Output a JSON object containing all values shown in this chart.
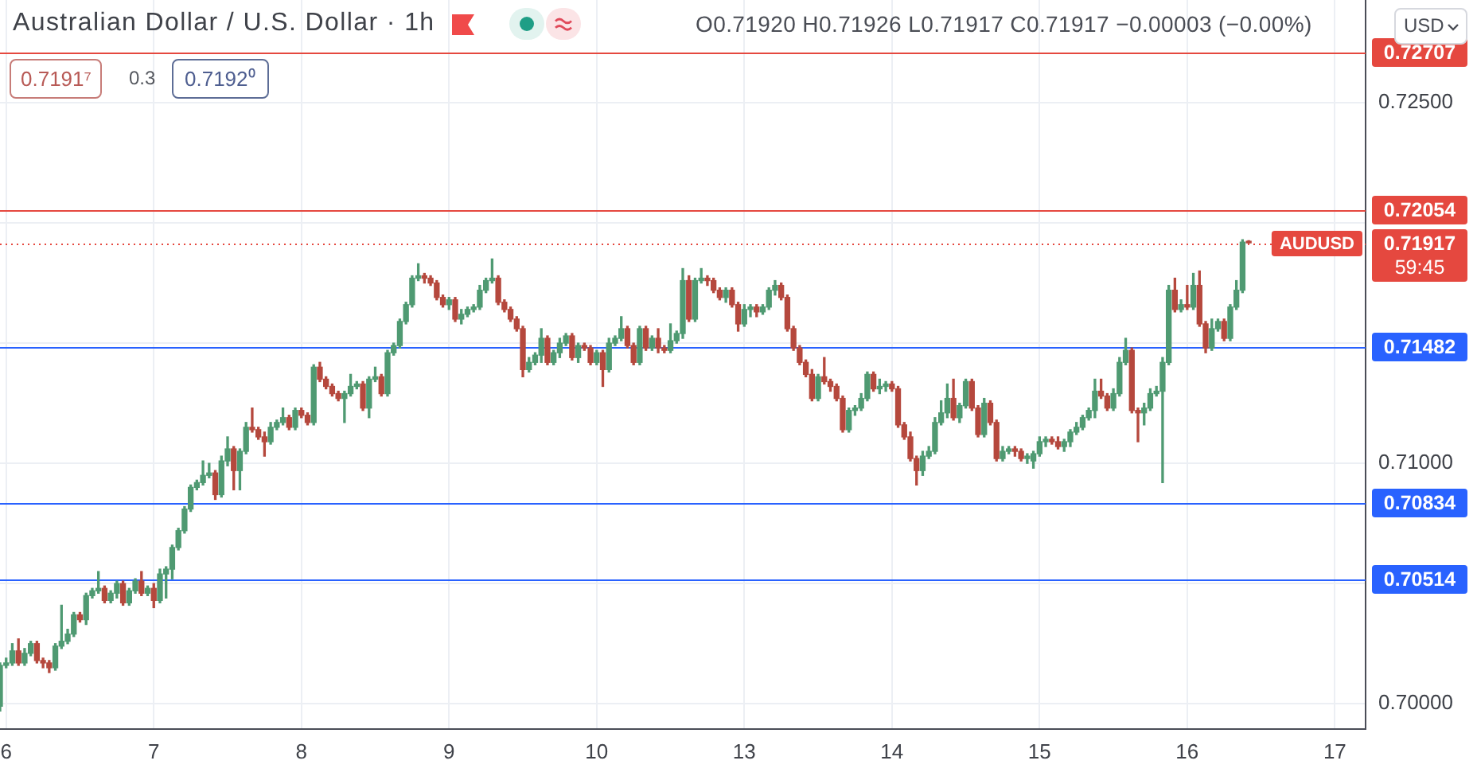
{
  "chart_data": {
    "type": "candlestick",
    "title": "Australian Dollar / U.S. Dollar · 1h",
    "subtitle": "O0.71920 H0.71926 L0.71917 C0.71917 −0.00003 (−0.00%)",
    "annotations": [
      "0.7191⁷",
      "0.3",
      "0.7192⁰",
      "USD",
      "AUDUSD",
      "59:45"
    ],
    "categories": [
      null,
      "6",
      null,
      null,
      null,
      null,
      null,
      null,
      null,
      null,
      null,
      null,
      null,
      null,
      null,
      null,
      null,
      null,
      null,
      null,
      null,
      null,
      null,
      null,
      null,
      "7",
      null,
      null,
      null,
      null,
      null,
      null,
      null,
      null,
      null,
      null,
      null,
      null,
      null,
      null,
      null,
      null,
      null,
      null,
      null,
      null,
      null,
      null,
      null,
      "8",
      null,
      null,
      null,
      null,
      null,
      null,
      null,
      null,
      null,
      null,
      null,
      null,
      null,
      null,
      null,
      null,
      null,
      null,
      null,
      null,
      null,
      null,
      null,
      "9",
      null,
      null,
      null,
      null,
      null,
      null,
      null,
      null,
      null,
      null,
      null,
      null,
      null,
      null,
      null,
      null,
      null,
      null,
      null,
      null,
      null,
      null,
      null,
      "10",
      null,
      null,
      null,
      null,
      null,
      null,
      null,
      null,
      null,
      null,
      null,
      null,
      null,
      null,
      null,
      null,
      null,
      null,
      null,
      null,
      null,
      null,
      null,
      "13",
      null,
      null,
      null,
      null,
      null,
      null,
      null,
      null,
      null,
      null,
      null,
      null,
      null,
      null,
      null,
      null,
      null,
      null,
      null,
      null,
      null,
      null,
      null,
      "14",
      null,
      null,
      null,
      null,
      null,
      null,
      null,
      null,
      null,
      null,
      null,
      null,
      null,
      null,
      null,
      null,
      null,
      null,
      null,
      null,
      null,
      null,
      null,
      "15",
      null,
      null,
      null,
      null,
      null,
      null,
      null,
      null,
      null,
      null,
      null,
      null,
      null,
      null,
      null,
      null,
      null,
      null,
      null,
      null,
      null,
      null,
      null,
      "16",
      null,
      null,
      null,
      null,
      null,
      null,
      null,
      null,
      null,
      null,
      null,
      null,
      null,
      null,
      null,
      null,
      null,
      null,
      null,
      null,
      null,
      null,
      null,
      "17",
      null,
      null,
      null,
      null,
      null
    ],
    "ohlc": [
      [
        0.6999,
        0.7017,
        0.6997,
        0.7016
      ],
      [
        0.7016,
        0.7019,
        0.7015,
        0.7017
      ],
      [
        0.7017,
        0.7025,
        0.7016,
        0.7022
      ],
      [
        0.7022,
        0.7027,
        0.7016,
        0.7017
      ],
      [
        0.7017,
        0.7023,
        0.7016,
        0.7021
      ],
      [
        0.7021,
        0.7026,
        0.702,
        0.7025
      ],
      [
        0.7025,
        0.7026,
        0.7017,
        0.7018
      ],
      [
        0.7018,
        0.7019,
        0.7015,
        0.7017
      ],
      [
        0.7017,
        0.7018,
        0.7013,
        0.7015
      ],
      [
        0.7015,
        0.7025,
        0.7014,
        0.7024
      ],
      [
        0.7024,
        0.7041,
        0.7023,
        0.7026
      ],
      [
        0.7026,
        0.7031,
        0.7025,
        0.7029
      ],
      [
        0.7029,
        0.7038,
        0.7028,
        0.7037
      ],
      [
        0.7037,
        0.7038,
        0.7034,
        0.7035
      ],
      [
        0.7035,
        0.7046,
        0.7033,
        0.7045
      ],
      [
        0.7045,
        0.7048,
        0.7044,
        0.7047
      ],
      [
        0.7047,
        0.7055,
        0.7046,
        0.7048
      ],
      [
        0.7048,
        0.7049,
        0.7042,
        0.7043
      ],
      [
        0.7043,
        0.7047,
        0.7042,
        0.7046
      ],
      [
        0.7046,
        0.7051,
        0.7044,
        0.705
      ],
      [
        0.705,
        0.7051,
        0.7041,
        0.7042
      ],
      [
        0.7042,
        0.7048,
        0.7041,
        0.7047
      ],
      [
        0.7047,
        0.7052,
        0.7046,
        0.7051
      ],
      [
        0.7051,
        0.7055,
        0.7045,
        0.7046
      ],
      [
        0.7046,
        0.7049,
        0.7045,
        0.7048
      ],
      [
        0.7048,
        0.705,
        0.704,
        0.7043
      ],
      [
        0.7043,
        0.7056,
        0.7042,
        0.7054
      ],
      [
        0.7054,
        0.7057,
        0.7044,
        0.7056
      ],
      [
        0.7056,
        0.7066,
        0.7052,
        0.7065
      ],
      [
        0.7065,
        0.7073,
        0.7064,
        0.7072
      ],
      [
        0.7072,
        0.7082,
        0.7071,
        0.7081
      ],
      [
        0.7081,
        0.7091,
        0.708,
        0.709
      ],
      [
        0.709,
        0.7093,
        0.7089,
        0.7092
      ],
      [
        0.7092,
        0.7101,
        0.7091,
        0.7095
      ],
      [
        0.7095,
        0.71,
        0.7094,
        0.7096
      ],
      [
        0.7096,
        0.7097,
        0.7085,
        0.7087
      ],
      [
        0.7087,
        0.7103,
        0.7086,
        0.7101
      ],
      [
        0.7101,
        0.7111,
        0.7099,
        0.7106
      ],
      [
        0.7106,
        0.7107,
        0.7089,
        0.7097
      ],
      [
        0.7097,
        0.7106,
        0.7089,
        0.7105
      ],
      [
        0.7105,
        0.7117,
        0.7104,
        0.7115
      ],
      [
        0.7115,
        0.7123,
        0.7113,
        0.7114
      ],
      [
        0.7114,
        0.7115,
        0.711,
        0.7111
      ],
      [
        0.7111,
        0.7113,
        0.7103,
        0.7109
      ],
      [
        0.7109,
        0.7117,
        0.7108,
        0.7115
      ],
      [
        0.7115,
        0.7118,
        0.7114,
        0.7117
      ],
      [
        0.7117,
        0.7123,
        0.7116,
        0.7119
      ],
      [
        0.7119,
        0.712,
        0.7114,
        0.7115
      ],
      [
        0.7115,
        0.7123,
        0.7114,
        0.7122
      ],
      [
        0.7122,
        0.7123,
        0.7119,
        0.712
      ],
      [
        0.712,
        0.7121,
        0.7116,
        0.7117
      ],
      [
        0.7117,
        0.7141,
        0.7116,
        0.714
      ],
      [
        0.714,
        0.7142,
        0.7134,
        0.7135
      ],
      [
        0.7135,
        0.7136,
        0.7131,
        0.7132
      ],
      [
        0.7132,
        0.7133,
        0.7128,
        0.7129
      ],
      [
        0.7129,
        0.713,
        0.7126,
        0.7127
      ],
      [
        0.7127,
        0.713,
        0.7117,
        0.7129
      ],
      [
        0.7129,
        0.7137,
        0.7128,
        0.7132
      ],
      [
        0.7132,
        0.7134,
        0.7131,
        0.7133
      ],
      [
        0.7133,
        0.7134,
        0.7122,
        0.7123
      ],
      [
        0.7123,
        0.7136,
        0.7119,
        0.7135
      ],
      [
        0.7135,
        0.714,
        0.7134,
        0.7136
      ],
      [
        0.7136,
        0.7137,
        0.7128,
        0.7129
      ],
      [
        0.7129,
        0.7147,
        0.7128,
        0.7146
      ],
      [
        0.7146,
        0.715,
        0.7145,
        0.7149
      ],
      [
        0.7149,
        0.716,
        0.7148,
        0.7159
      ],
      [
        0.7159,
        0.7167,
        0.7158,
        0.7166
      ],
      [
        0.7166,
        0.7178,
        0.7165,
        0.7177
      ],
      [
        0.7177,
        0.7183,
        0.7176,
        0.7178
      ],
      [
        0.7178,
        0.7179,
        0.7175,
        0.7177
      ],
      [
        0.7177,
        0.7178,
        0.7174,
        0.7175
      ],
      [
        0.7175,
        0.7176,
        0.7168,
        0.7169
      ],
      [
        0.7169,
        0.717,
        0.7165,
        0.7166
      ],
      [
        0.7166,
        0.7169,
        0.7164,
        0.7168
      ],
      [
        0.7168,
        0.7169,
        0.7159,
        0.716
      ],
      [
        0.716,
        0.7164,
        0.7158,
        0.7162
      ],
      [
        0.7162,
        0.7165,
        0.7161,
        0.7164
      ],
      [
        0.7164,
        0.7166,
        0.7163,
        0.7165
      ],
      [
        0.7165,
        0.7174,
        0.7164,
        0.7172
      ],
      [
        0.7172,
        0.7177,
        0.7171,
        0.7176
      ],
      [
        0.7176,
        0.7185,
        0.7175,
        0.7177
      ],
      [
        0.7177,
        0.7178,
        0.7166,
        0.7167
      ],
      [
        0.7167,
        0.7168,
        0.7163,
        0.7164
      ],
      [
        0.7164,
        0.7165,
        0.7159,
        0.716
      ],
      [
        0.716,
        0.7161,
        0.7155,
        0.7156
      ],
      [
        0.7156,
        0.7157,
        0.7136,
        0.7139
      ],
      [
        0.7139,
        0.7144,
        0.7138,
        0.7142
      ],
      [
        0.7142,
        0.7146,
        0.7141,
        0.7145
      ],
      [
        0.7145,
        0.7156,
        0.7142,
        0.7152
      ],
      [
        0.7152,
        0.7153,
        0.7141,
        0.7142
      ],
      [
        0.7142,
        0.7147,
        0.7141,
        0.7146
      ],
      [
        0.7146,
        0.7152,
        0.7144,
        0.715
      ],
      [
        0.715,
        0.7154,
        0.7149,
        0.7153
      ],
      [
        0.7153,
        0.7154,
        0.7143,
        0.7144
      ],
      [
        0.7144,
        0.715,
        0.7142,
        0.7149
      ],
      [
        0.7149,
        0.715,
        0.7147,
        0.7148
      ],
      [
        0.7148,
        0.7149,
        0.7141,
        0.7142
      ],
      [
        0.7142,
        0.7147,
        0.7141,
        0.7146
      ],
      [
        0.7146,
        0.7147,
        0.7132,
        0.7139
      ],
      [
        0.7139,
        0.7152,
        0.7138,
        0.715
      ],
      [
        0.715,
        0.7153,
        0.7149,
        0.7152
      ],
      [
        0.7152,
        0.7161,
        0.7151,
        0.7156
      ],
      [
        0.7156,
        0.7157,
        0.7148,
        0.7149
      ],
      [
        0.7149,
        0.715,
        0.7141,
        0.7142
      ],
      [
        0.7142,
        0.7157,
        0.7141,
        0.7156
      ],
      [
        0.7156,
        0.7157,
        0.7147,
        0.7148
      ],
      [
        0.7148,
        0.7153,
        0.7147,
        0.7152
      ],
      [
        0.7152,
        0.7156,
        0.7146,
        0.7148
      ],
      [
        0.7148,
        0.7149,
        0.7146,
        0.7147
      ],
      [
        0.7147,
        0.7158,
        0.7146,
        0.7151
      ],
      [
        0.7151,
        0.7155,
        0.715,
        0.7154
      ],
      [
        0.7154,
        0.7181,
        0.7152,
        0.7176
      ],
      [
        0.7176,
        0.7178,
        0.7159,
        0.716
      ],
      [
        0.716,
        0.7177,
        0.7159,
        0.7176
      ],
      [
        0.7176,
        0.7181,
        0.7175,
        0.7177
      ],
      [
        0.7177,
        0.7178,
        0.7174,
        0.7176
      ],
      [
        0.7176,
        0.7177,
        0.7171,
        0.7172
      ],
      [
        0.7172,
        0.7173,
        0.7168,
        0.7169
      ],
      [
        0.7169,
        0.7173,
        0.7167,
        0.7172
      ],
      [
        0.7172,
        0.7173,
        0.7165,
        0.7166
      ],
      [
        0.7166,
        0.7167,
        0.7155,
        0.7158
      ],
      [
        0.7158,
        0.7166,
        0.7157,
        0.7164
      ],
      [
        0.7164,
        0.7166,
        0.7161,
        0.7165
      ],
      [
        0.7165,
        0.7166,
        0.7161,
        0.7163
      ],
      [
        0.7163,
        0.7166,
        0.7162,
        0.7165
      ],
      [
        0.7165,
        0.7173,
        0.7164,
        0.7172
      ],
      [
        0.7172,
        0.7176,
        0.717,
        0.7174
      ],
      [
        0.7174,
        0.7175,
        0.7168,
        0.7169
      ],
      [
        0.7169,
        0.717,
        0.7155,
        0.7156
      ],
      [
        0.7156,
        0.7157,
        0.7147,
        0.7148
      ],
      [
        0.7148,
        0.7149,
        0.7141,
        0.7142
      ],
      [
        0.7142,
        0.7143,
        0.7136,
        0.7137
      ],
      [
        0.7137,
        0.7139,
        0.7126,
        0.7127
      ],
      [
        0.7127,
        0.7137,
        0.7126,
        0.7136
      ],
      [
        0.7136,
        0.7144,
        0.7133,
        0.7134
      ],
      [
        0.7134,
        0.7135,
        0.713,
        0.7132
      ],
      [
        0.7132,
        0.7133,
        0.7126,
        0.7127
      ],
      [
        0.7127,
        0.7128,
        0.7113,
        0.7114
      ],
      [
        0.7114,
        0.7123,
        0.7113,
        0.7122
      ],
      [
        0.7122,
        0.7124,
        0.712,
        0.7123
      ],
      [
        0.7123,
        0.7129,
        0.7122,
        0.7127
      ],
      [
        0.7127,
        0.7138,
        0.7126,
        0.7137
      ],
      [
        0.7137,
        0.7138,
        0.713,
        0.7131
      ],
      [
        0.7131,
        0.7135,
        0.7129,
        0.7132
      ],
      [
        0.7132,
        0.7134,
        0.713,
        0.7133
      ],
      [
        0.7133,
        0.7134,
        0.713,
        0.7131
      ],
      [
        0.7131,
        0.7132,
        0.7115,
        0.7116
      ],
      [
        0.7116,
        0.7117,
        0.711,
        0.7111
      ],
      [
        0.7111,
        0.7113,
        0.7101,
        0.7102
      ],
      [
        0.7102,
        0.7103,
        0.7091,
        0.7097
      ],
      [
        0.7097,
        0.7105,
        0.7095,
        0.7103
      ],
      [
        0.7103,
        0.7107,
        0.7102,
        0.7105
      ],
      [
        0.7105,
        0.7119,
        0.7104,
        0.7117
      ],
      [
        0.7117,
        0.7126,
        0.7116,
        0.7121
      ],
      [
        0.7121,
        0.7133,
        0.7119,
        0.7127
      ],
      [
        0.7127,
        0.7135,
        0.7118,
        0.7119
      ],
      [
        0.7119,
        0.7125,
        0.7117,
        0.7124
      ],
      [
        0.7124,
        0.7135,
        0.7123,
        0.7134
      ],
      [
        0.7134,
        0.7135,
        0.7122,
        0.7123
      ],
      [
        0.7123,
        0.7124,
        0.7111,
        0.7112
      ],
      [
        0.7112,
        0.7127,
        0.7111,
        0.7125
      ],
      [
        0.7125,
        0.7126,
        0.7116,
        0.7117
      ],
      [
        0.7117,
        0.7118,
        0.7101,
        0.7102
      ],
      [
        0.7102,
        0.7107,
        0.7101,
        0.7105
      ],
      [
        0.7105,
        0.7107,
        0.7104,
        0.7106
      ],
      [
        0.7106,
        0.7107,
        0.7103,
        0.7105
      ],
      [
        0.7105,
        0.7106,
        0.7101,
        0.7102
      ],
      [
        0.7102,
        0.7104,
        0.71,
        0.7103
      ],
      [
        0.7101,
        0.7105,
        0.7098,
        0.7104
      ],
      [
        0.7104,
        0.7111,
        0.7103,
        0.7109
      ],
      [
        0.7109,
        0.7111,
        0.7107,
        0.711
      ],
      [
        0.711,
        0.7111,
        0.7108,
        0.7109
      ],
      [
        0.7109,
        0.7111,
        0.7106,
        0.7107
      ],
      [
        0.7107,
        0.711,
        0.7105,
        0.7109
      ],
      [
        0.7109,
        0.7114,
        0.7107,
        0.7113
      ],
      [
        0.7113,
        0.7117,
        0.7112,
        0.7115
      ],
      [
        0.7115,
        0.712,
        0.7114,
        0.7119
      ],
      [
        0.7119,
        0.7123,
        0.7118,
        0.7122
      ],
      [
        0.7122,
        0.7135,
        0.7119,
        0.713
      ],
      [
        0.713,
        0.7135,
        0.7127,
        0.7128
      ],
      [
        0.7128,
        0.7129,
        0.7122,
        0.7123
      ],
      [
        0.7123,
        0.7131,
        0.7122,
        0.7129
      ],
      [
        0.7129,
        0.7144,
        0.7128,
        0.7142
      ],
      [
        0.7142,
        0.7152,
        0.7141,
        0.7147
      ],
      [
        0.7147,
        0.7148,
        0.7121,
        0.7122
      ],
      [
        0.7122,
        0.7123,
        0.7109,
        0.7121
      ],
      [
        0.7121,
        0.7125,
        0.7116,
        0.7123
      ],
      [
        0.7123,
        0.7131,
        0.7122,
        0.7129
      ],
      [
        0.7129,
        0.7132,
        0.7128,
        0.713
      ],
      [
        0.713,
        0.7144,
        0.7092,
        0.7142
      ],
      [
        0.7142,
        0.7174,
        0.7141,
        0.7172
      ],
      [
        0.7172,
        0.7177,
        0.7163,
        0.7164
      ],
      [
        0.7164,
        0.7168,
        0.7163,
        0.7166
      ],
      [
        0.7166,
        0.7174,
        0.7164,
        0.7165
      ],
      [
        0.7165,
        0.7179,
        0.7164,
        0.7174
      ],
      [
        0.7174,
        0.718,
        0.7157,
        0.7158
      ],
      [
        0.7158,
        0.7159,
        0.7146,
        0.7148
      ],
      [
        0.7148,
        0.716,
        0.7147,
        0.7156
      ],
      [
        0.7156,
        0.716,
        0.7155,
        0.7159
      ],
      [
        0.7159,
        0.716,
        0.7151,
        0.7152
      ],
      [
        0.7152,
        0.7166,
        0.7151,
        0.7165
      ],
      [
        0.7165,
        0.7176,
        0.7164,
        0.7172
      ],
      [
        0.7172,
        0.7193,
        0.7171,
        0.7192
      ],
      [
        0.7192,
        0.71926,
        0.71917,
        0.71917
      ],
      null,
      null,
      null,
      null,
      null,
      null,
      null,
      null,
      null,
      null,
      null,
      null,
      null,
      null,
      null,
      null,
      null,
      null,
      null
    ],
    "colors": [
      "#4f9a72",
      "#4f9a72",
      "#4f9a72",
      "#b5483d",
      "#4f9a72",
      "#4f9a72",
      "#b5483d",
      "#b5483d",
      "#b5483d",
      "#4f9a72",
      "#4f9a72",
      "#4f9a72",
      "#4f9a72",
      "#b5483d",
      "#4f9a72",
      "#4f9a72",
      "#4f9a72",
      "#b5483d",
      "#4f9a72",
      "#4f9a72",
      "#b5483d",
      "#4f9a72",
      "#4f9a72",
      "#b5483d",
      "#4f9a72",
      "#b5483d",
      "#4f9a72",
      "#4f9a72",
      "#4f9a72",
      "#4f9a72",
      "#4f9a72",
      "#4f9a72",
      "#4f9a72",
      "#4f9a72",
      "#4f9a72",
      "#b5483d",
      "#4f9a72",
      "#4f9a72",
      "#b5483d",
      "#4f9a72",
      "#4f9a72",
      "#b5483d",
      "#b5483d",
      "#b5483d",
      "#4f9a72",
      "#4f9a72",
      "#4f9a72",
      "#b5483d",
      "#4f9a72",
      "#b5483d",
      "#b5483d",
      "#4f9a72",
      "#b5483d",
      "#b5483d",
      "#b5483d",
      "#b5483d",
      "#4f9a72",
      "#4f9a72",
      "#4f9a72",
      "#b5483d",
      "#4f9a72",
      "#4f9a72",
      "#b5483d",
      "#4f9a72",
      "#4f9a72",
      "#4f9a72",
      "#4f9a72",
      "#4f9a72",
      "#4f9a72",
      "#b5483d",
      "#b5483d",
      "#b5483d",
      "#b5483d",
      "#4f9a72",
      "#b5483d",
      "#4f9a72",
      "#4f9a72",
      "#4f9a72",
      "#4f9a72",
      "#4f9a72",
      "#4f9a72",
      "#b5483d",
      "#b5483d",
      "#b5483d",
      "#b5483d",
      "#b5483d",
      "#4f9a72",
      "#4f9a72",
      "#4f9a72",
      "#b5483d",
      "#4f9a72",
      "#4f9a72",
      "#4f9a72",
      "#b5483d",
      "#4f9a72",
      "#b5483d",
      "#b5483d",
      "#4f9a72",
      "#b5483d",
      "#4f9a72",
      "#4f9a72",
      "#4f9a72",
      "#b5483d",
      "#b5483d",
      "#4f9a72",
      "#b5483d",
      "#4f9a72",
      "#b5483d",
      "#b5483d",
      "#4f9a72",
      "#4f9a72",
      "#4f9a72",
      "#b5483d",
      "#4f9a72",
      "#4f9a72",
      "#b5483d",
      "#b5483d",
      "#b5483d",
      "#4f9a72",
      "#b5483d",
      "#b5483d",
      "#4f9a72",
      "#4f9a72",
      "#b5483d",
      "#4f9a72",
      "#4f9a72",
      "#4f9a72",
      "#b5483d",
      "#b5483d",
      "#b5483d",
      "#b5483d",
      "#b5483d",
      "#b5483d",
      "#4f9a72",
      "#b5483d",
      "#b5483d",
      "#b5483d",
      "#b5483d",
      "#4f9a72",
      "#4f9a72",
      "#4f9a72",
      "#4f9a72",
      "#b5483d",
      "#4f9a72",
      "#4f9a72",
      "#b5483d",
      "#b5483d",
      "#b5483d",
      "#b5483d",
      "#b5483d",
      "#4f9a72",
      "#4f9a72",
      "#4f9a72",
      "#4f9a72",
      "#4f9a72",
      "#b5483d",
      "#4f9a72",
      "#4f9a72",
      "#b5483d",
      "#b5483d",
      "#4f9a72",
      "#b5483d",
      "#b5483d",
      "#4f9a72",
      "#4f9a72",
      "#b5483d",
      "#b5483d",
      "#4f9a72",
      "#4f9a72",
      "#4f9a72",
      "#4f9a72",
      "#b5483d",
      "#b5483d",
      "#4f9a72",
      "#4f9a72",
      "#4f9a72",
      "#4f9a72",
      "#4f9a72",
      "#4f9a72",
      "#b5483d",
      "#b5483d",
      "#4f9a72",
      "#4f9a72",
      "#4f9a72",
      "#b5483d",
      "#b5483d",
      "#4f9a72",
      "#4f9a72",
      "#4f9a72",
      "#4f9a72",
      "#4f9a72",
      "#b5483d",
      "#4f9a72",
      "#b5483d",
      "#4f9a72",
      "#b5483d",
      "#b5483d",
      "#4f9a72",
      "#4f9a72",
      "#b5483d",
      "#4f9a72",
      "#4f9a72",
      "#4f9a72",
      "#b5483d",
      null,
      null,
      null,
      null,
      null,
      null,
      null,
      null,
      null,
      null,
      null,
      null,
      null,
      null,
      null,
      null,
      null,
      null,
      null
    ],
    "ylim": [
      0.69895,
      0.72927
    ],
    "yticks": [
      {
        "value": 0.7,
        "label": "0.70000"
      },
      {
        "value": 0.705,
        "label": null
      },
      {
        "value": 0.71,
        "label": "0.71000"
      },
      {
        "value": 0.715,
        "label": null
      },
      {
        "value": 0.72,
        "label": null
      },
      {
        "value": 0.725,
        "label": "0.72500"
      }
    ],
    "grid": true,
    "ref_lines": [
      {
        "axis": "y",
        "value": 0.72707,
        "label": "0.72707",
        "color": "#e5483f"
      },
      {
        "axis": "y",
        "value": 0.72054,
        "label": "0.72054",
        "color": "#e5483f"
      },
      {
        "axis": "y",
        "value": 0.71917,
        "label": "0.71917",
        "color": "#e5483f",
        "line_style": "dotted"
      },
      {
        "axis": "y",
        "value": 0.71482,
        "label": "0.71482",
        "color": "#2962ff"
      },
      {
        "axis": "y",
        "value": 0.70834,
        "label": "0.70834",
        "color": "#2962ff"
      },
      {
        "axis": "y",
        "value": 0.70514,
        "label": "0.70514",
        "color": "#2962ff"
      }
    ]
  }
}
